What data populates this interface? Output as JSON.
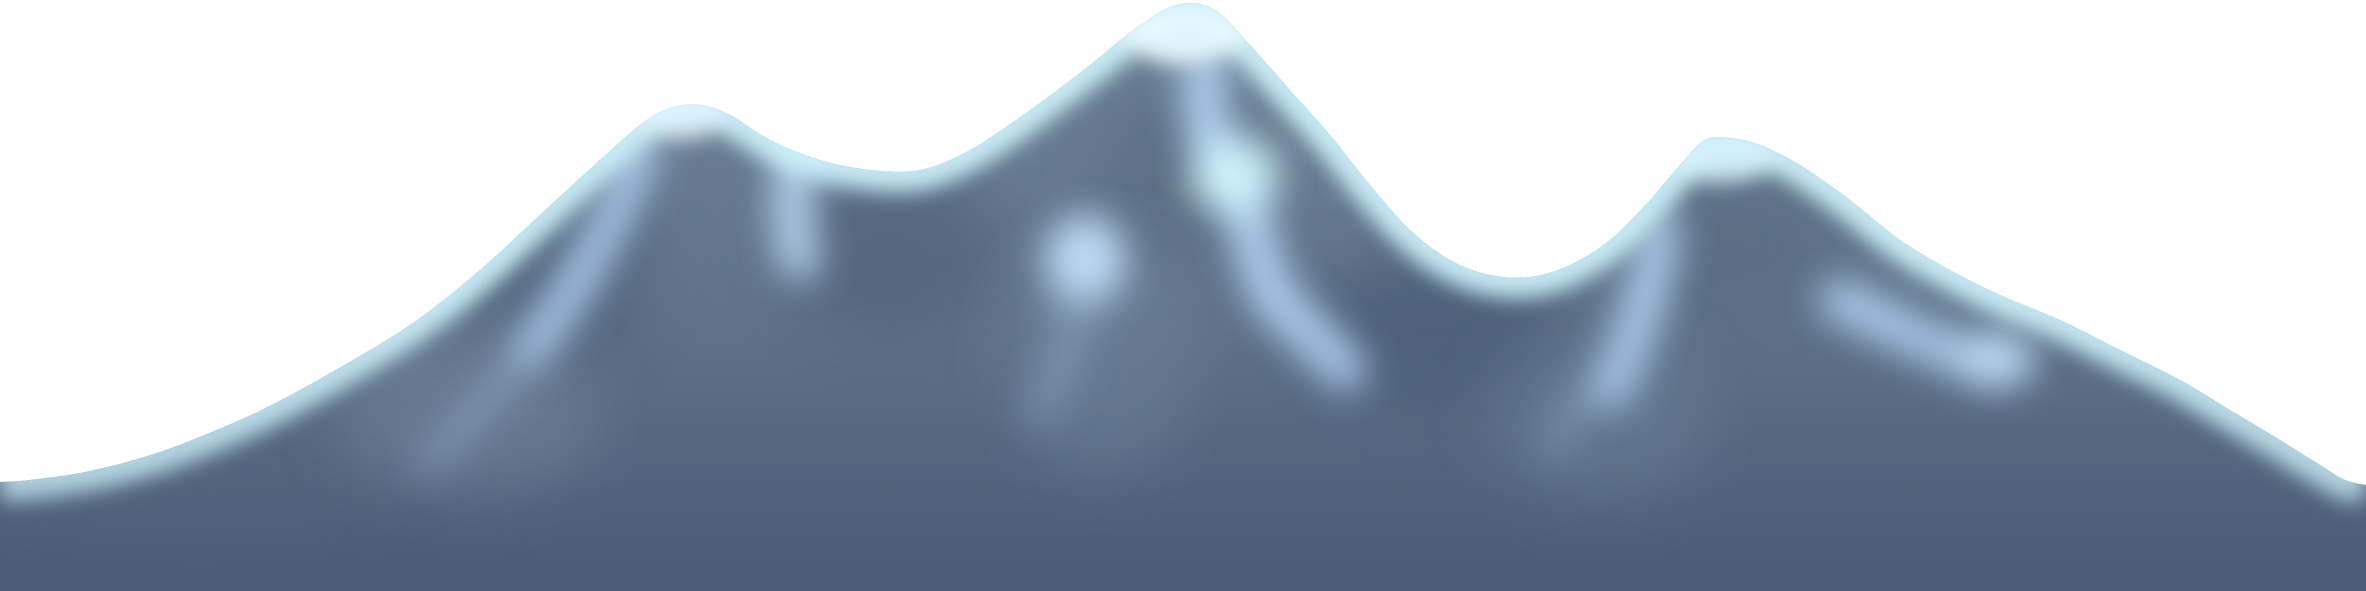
{
  "scene": {
    "subject": "mountain-range-illustration",
    "colors": {
      "background": "#ffffff",
      "rock_light": "#6f8499",
      "rock_mid": "#5f7389",
      "rock_dark": "#4b5f78",
      "base_dark": "#4a5d77",
      "snow_bright": "#e6fbff",
      "snow_cyan": "#d2f6ff",
      "snow_blue": "#bcdcff",
      "highlight": "#c6e4ff"
    }
  }
}
